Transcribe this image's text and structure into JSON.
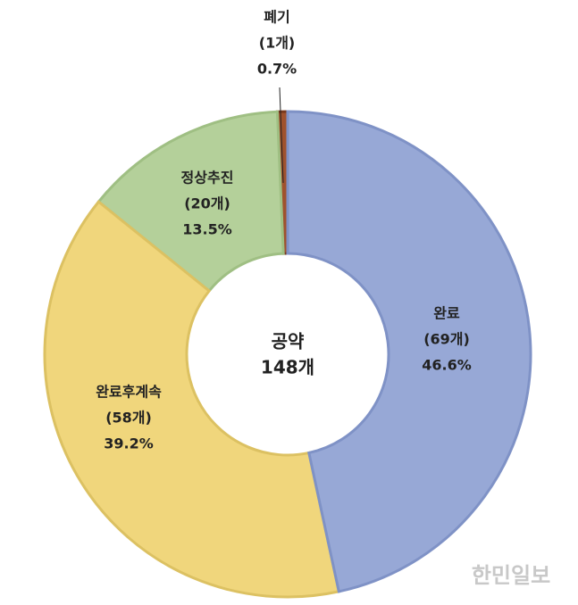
{
  "chart_data": {
    "type": "donut",
    "categories": [
      "완료",
      "완료후계속",
      "정상추진",
      "폐기"
    ],
    "values": [
      69,
      58,
      20,
      1
    ],
    "value_labels": [
      "(69개)",
      "(58개)",
      "(20개)",
      "(1개)"
    ],
    "percent_labels": [
      "46.6%",
      "39.2%",
      "13.5%",
      "0.7%"
    ],
    "colors": [
      "#97a8d6",
      "#f0d67c",
      "#b4d09a",
      "#a0522d"
    ],
    "center_label": "공약",
    "total_label": "148개"
  },
  "watermark": "한민일보"
}
